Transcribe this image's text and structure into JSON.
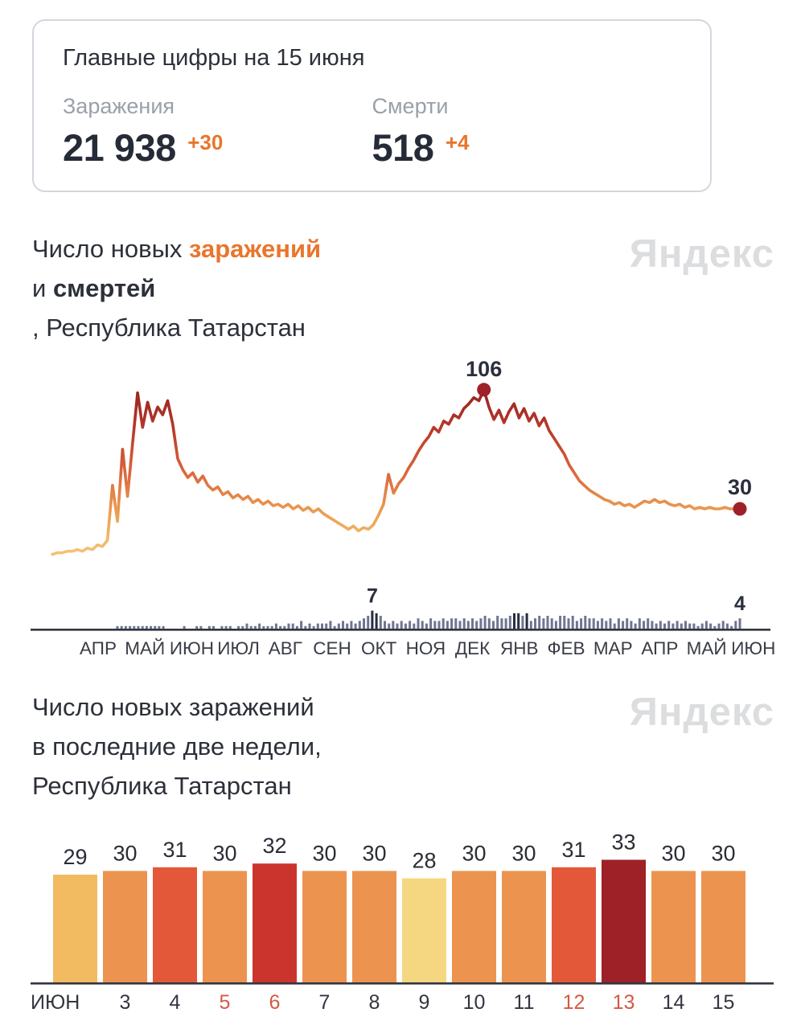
{
  "summary_card": {
    "title": "Главные цифры на 15 июня",
    "stats": [
      {
        "label": "Заражения",
        "value": "21 938",
        "delta": "+30"
      },
      {
        "label": "Смерти",
        "value": "518",
        "delta": "+4"
      }
    ],
    "accent_color": "#e8762d"
  },
  "watermark": "Яндекс",
  "section1": {
    "line1_normal": "Число новых ",
    "line1_highlight": "заражений",
    "line2_normal": "и ",
    "line2_bold": "смертей",
    "line3": ", Республика Татарстан"
  },
  "section2": {
    "line1": "Число новых заражений",
    "line2": "в последние две недели,",
    "line3": "Республика Татарстан"
  },
  "chart_data": [
    {
      "type": "line",
      "title": "Число новых заражений и смертей, Республика Татарстан",
      "x_axis_months": [
        "АПР",
        "МАЙ",
        "ИЮН",
        "ИЮЛ",
        "АВГ",
        "СЕН",
        "ОКТ",
        "НОЯ",
        "ДЕК",
        "ЯНВ",
        "ФЕВ",
        "МАР",
        "АПР",
        "МАЙ",
        "ИЮН"
      ],
      "ylim": [
        0,
        110
      ],
      "grid": false,
      "infections": {
        "name": "заражения",
        "peak_label": 106,
        "last_label": 30,
        "values": [
          1,
          2,
          2,
          3,
          3,
          4,
          3,
          5,
          4,
          7,
          6,
          10,
          45,
          22,
          68,
          38,
          72,
          104,
          82,
          98,
          86,
          95,
          90,
          99,
          84,
          62,
          55,
          50,
          53,
          47,
          51,
          45,
          42,
          44,
          39,
          41,
          37,
          39,
          36,
          38,
          34,
          36,
          33,
          35,
          32,
          33,
          31,
          33,
          30,
          32,
          29,
          31,
          28,
          30,
          27,
          25,
          23,
          21,
          19,
          17,
          19,
          16,
          18,
          17,
          20,
          26,
          33,
          52,
          40,
          46,
          50,
          56,
          61,
          67,
          72,
          76,
          82,
          79,
          86,
          84,
          90,
          88,
          94,
          97,
          101,
          99,
          106,
          95,
          87,
          93,
          85,
          92,
          97,
          88,
          94,
          86,
          91,
          83,
          88,
          80,
          75,
          70,
          65,
          58,
          53,
          48,
          45,
          42,
          40,
          38,
          36,
          35,
          33,
          34,
          32,
          33,
          31,
          33,
          35,
          34,
          36,
          34,
          35,
          33,
          32,
          33,
          31,
          32,
          30,
          31,
          30,
          31,
          30,
          30,
          31,
          30,
          30,
          30
        ]
      },
      "deaths": {
        "name": "смерти",
        "peak_label": 7,
        "last_label": 4,
        "values": [
          1,
          1,
          1,
          1,
          1,
          1,
          1,
          1,
          1,
          1,
          1,
          1,
          0,
          0,
          0,
          0,
          1,
          0,
          0,
          1,
          1,
          0,
          1,
          1,
          0,
          1,
          1,
          1,
          0,
          1,
          1,
          2,
          1,
          1,
          2,
          1,
          1,
          1,
          2,
          1,
          1,
          2,
          2,
          1,
          3,
          1,
          2,
          1,
          2,
          2,
          2,
          3,
          1,
          2,
          3,
          2,
          3,
          2,
          3,
          4,
          5,
          7,
          6,
          5,
          3,
          2,
          3,
          2,
          3,
          2,
          3,
          2,
          4,
          3,
          2,
          4,
          3,
          3,
          4,
          3,
          4,
          4,
          3,
          4,
          3,
          4,
          3,
          4,
          5,
          4,
          3,
          5,
          4,
          4,
          5,
          6,
          6,
          5,
          6,
          3,
          4,
          5,
          4,
          5,
          4,
          3,
          5,
          5,
          4,
          5,
          3,
          4,
          5,
          4,
          4,
          3,
          4,
          3,
          4,
          2,
          4,
          3,
          4,
          3,
          2,
          4,
          3,
          4,
          3,
          2,
          3,
          2,
          3,
          2,
          3,
          2,
          3,
          2,
          2,
          1,
          2,
          3,
          2,
          1,
          2,
          3,
          2,
          1,
          3,
          4
        ]
      },
      "line_gradient": [
        "#962423",
        "#bb3a2b",
        "#dc6a3d",
        "#eda354",
        "#f5c87c"
      ],
      "dot_color": "#9e2128",
      "death_bar_color": "#6e7590",
      "death_bar_dark": "#272c40"
    },
    {
      "type": "bar",
      "title": "Число новых заражений в последние две недели, Республика Татарстан",
      "categories": [
        "ИЮН",
        "3",
        "4",
        "5",
        "6",
        "7",
        "8",
        "9",
        "10",
        "11",
        "12",
        "13",
        "14",
        "15"
      ],
      "values": [
        29,
        30,
        31,
        30,
        32,
        30,
        30,
        28,
        30,
        30,
        31,
        33,
        30,
        30
      ],
      "red_categories": [
        "5",
        "6",
        "12",
        "13"
      ],
      "ylim": [
        0,
        33
      ],
      "bar_colors": {
        "28": "#f6d781",
        "29": "#f2bb61",
        "30": "#ec9350",
        "31": "#e4583a",
        "32": "#cb342c",
        "33": "#9e2127"
      }
    }
  ]
}
